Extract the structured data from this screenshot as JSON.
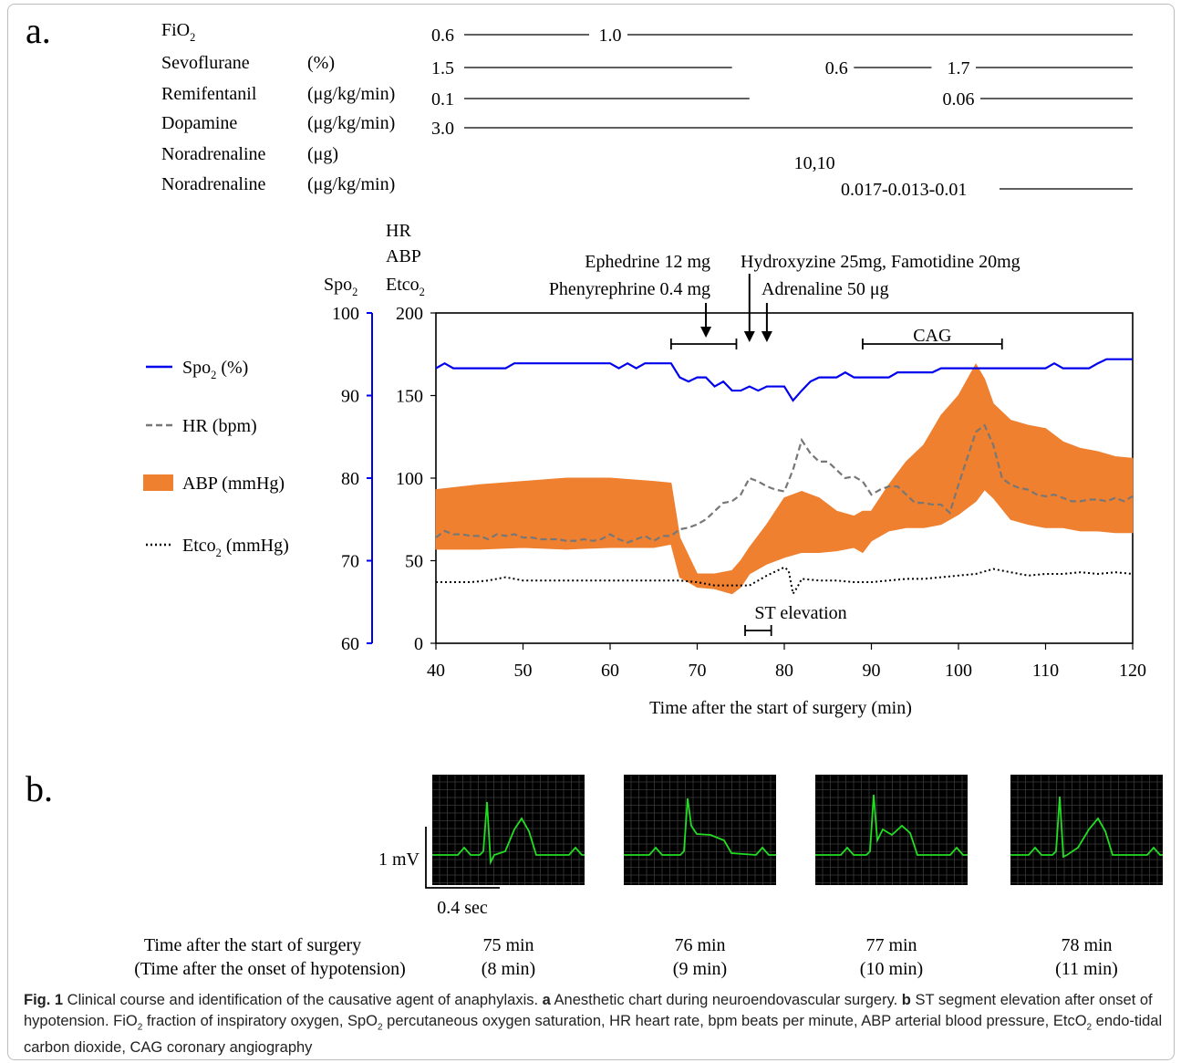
{
  "panel_a_label": "a.",
  "panel_b_label": "b.",
  "drugs": [
    {
      "name": "FiO",
      "sub": "2",
      "unit": "",
      "segments": [
        {
          "label": "0.6",
          "x0": 40,
          "x1": 60
        },
        {
          "label": "1.0",
          "x0": 60,
          "x1": 120
        }
      ]
    },
    {
      "name": "Sevoflurane",
      "sub": "",
      "unit": "(%)",
      "segments": [
        {
          "label": "1.5",
          "x0": 40,
          "x1": 74
        },
        {
          "label": "0.6",
          "x0": 86,
          "x1": 100
        },
        {
          "label": "1.7",
          "x0": 100,
          "x1": 120
        }
      ]
    },
    {
      "name": "Remifentanil",
      "sub": "",
      "unit": "(μg/kg/min)",
      "segments": [
        {
          "label": "0.1",
          "x0": 40,
          "x1": 76
        },
        {
          "label": "0.06",
          "x0": 100,
          "x1": 120
        }
      ]
    },
    {
      "name": "Dopamine",
      "sub": "",
      "unit": "(μg/kg/min)",
      "segments": [
        {
          "label": "3.0",
          "x0": 40,
          "x1": 120
        }
      ]
    },
    {
      "name": "Noradrenaline",
      "sub": "",
      "unit": "(μg)",
      "segments": [
        {
          "label": "10,10",
          "x0": 82,
          "x1": 82
        }
      ]
    },
    {
      "name": "Noradrenaline",
      "sub": "",
      "unit": "(μg/kg/min)",
      "segments": [
        {
          "label": "0.017",
          "x0": 83,
          "x1": 84
        },
        {
          "label": "0.013",
          "x0": 84,
          "x1": 86
        },
        {
          "label": "0.01",
          "x0": 86,
          "x1": 120
        }
      ]
    }
  ],
  "interventions": [
    {
      "text": "Ephedrine 12 mg",
      "x": 71
    },
    {
      "text": "Phenyrephrine 0.4 mg",
      "x": 71
    },
    {
      "text": "Hydroxyzine  25mg, Famotidine 20mg",
      "x": 76
    },
    {
      "text": "Adrenaline 50 μg",
      "x": 78
    }
  ],
  "chart_data": {
    "type": "line",
    "xlabel": "Time after the start of surgery (min)",
    "xlim": [
      40,
      120
    ],
    "xticks": [
      40,
      50,
      60,
      70,
      80,
      90,
      100,
      110,
      120
    ],
    "y_left": {
      "label": "Spo",
      "label_sub": "2",
      "range": [
        60,
        100
      ],
      "ticks": [
        60,
        70,
        80,
        90,
        100
      ],
      "color": "#0000ee"
    },
    "y_right": {
      "label_lines": [
        "HR",
        "ABP",
        "Etco"
      ],
      "label_sub": "2",
      "range": [
        0,
        200
      ],
      "ticks": [
        0,
        50,
        100,
        150,
        200
      ]
    },
    "legend": [
      {
        "name": "Spo",
        "sub": "2",
        "unit": " (%)",
        "style": "solid",
        "color": "#0000ee"
      },
      {
        "name": "HR (bpm)",
        "sub": "",
        "unit": "",
        "style": "dashed",
        "color": "#777777"
      },
      {
        "name": "ABP (mmHg)",
        "sub": "",
        "unit": "",
        "style": "band",
        "color": "#ee8030"
      },
      {
        "name": "Etco",
        "sub": "2",
        "unit": " (mmHg)",
        "style": "dotted",
        "color": "#000000"
      }
    ],
    "annotations": [
      {
        "text": "CAG",
        "x0": 89,
        "x1": 105
      },
      {
        "text": "",
        "x0": 67,
        "x1": 74.5
      },
      {
        "text": "ST elevation",
        "x0": 75.5,
        "x1": 78.5
      }
    ],
    "series_spo2": {
      "x": [
        40,
        41,
        42,
        43,
        44,
        45,
        46,
        47,
        48,
        49,
        50,
        51,
        52,
        53,
        54,
        55,
        56,
        57,
        58,
        59,
        60,
        61,
        62,
        63,
        64,
        65,
        66,
        67,
        68,
        69,
        70,
        71,
        72,
        73,
        74,
        75,
        76,
        77,
        78,
        79,
        80,
        81,
        82,
        83,
        84,
        85,
        86,
        87,
        88,
        89,
        90,
        91,
        92,
        93,
        94,
        95,
        96,
        97,
        98,
        99,
        100,
        101,
        102,
        103,
        104,
        105,
        106,
        107,
        108,
        109,
        110,
        111,
        112,
        113,
        114,
        115,
        116,
        117,
        118,
        119,
        120
      ],
      "y": [
        93.3,
        93.9,
        93.3,
        93.3,
        93.3,
        93.3,
        93.3,
        93.3,
        93.3,
        93.9,
        93.9,
        93.9,
        93.9,
        93.9,
        93.9,
        93.9,
        93.9,
        93.9,
        93.9,
        93.9,
        93.9,
        93.3,
        93.9,
        93.3,
        93.9,
        93.9,
        93.9,
        93.9,
        92.2,
        91.7,
        92.2,
        92.2,
        91.1,
        91.7,
        90.6,
        90.6,
        91.1,
        90.6,
        91.1,
        91.1,
        91.1,
        89.4,
        90.6,
        91.7,
        92.2,
        92.2,
        92.2,
        92.8,
        92.2,
        92.2,
        92.2,
        92.2,
        92.2,
        92.8,
        92.8,
        92.8,
        92.8,
        92.8,
        93.3,
        93.3,
        93.3,
        93.3,
        93.3,
        93.3,
        93.3,
        93.3,
        93.3,
        93.3,
        93.3,
        93.3,
        93.3,
        93.9,
        93.3,
        93.3,
        93.3,
        93.3,
        93.9,
        94.4,
        94.4,
        94.4,
        94.4
      ]
    },
    "series_hr": {
      "x": [
        40,
        41,
        42,
        43,
        44,
        45,
        46,
        47,
        48,
        49,
        50,
        51,
        52,
        53,
        54,
        55,
        56,
        57,
        58,
        59,
        60,
        61,
        62,
        63,
        64,
        65,
        66,
        67,
        68,
        69,
        70,
        71,
        72,
        73,
        74,
        75,
        76,
        77,
        78,
        79,
        80,
        81,
        82,
        83,
        84,
        85,
        86,
        87,
        88,
        89,
        90,
        91,
        92,
        93,
        94,
        95,
        96,
        97,
        98,
        99,
        100,
        101,
        102,
        103,
        104,
        105,
        106,
        107,
        108,
        109,
        110,
        111,
        112,
        113,
        114,
        115,
        116,
        117,
        118,
        119,
        120
      ],
      "y": [
        64,
        68,
        66,
        66,
        65,
        65,
        63,
        66,
        65,
        66,
        64,
        64,
        63,
        63,
        63,
        62,
        62,
        63,
        62,
        63,
        66,
        63,
        61,
        63,
        65,
        62,
        65,
        65,
        69,
        70,
        72,
        75,
        80,
        85,
        86,
        90,
        100,
        98,
        95,
        93,
        92,
        105,
        123,
        115,
        110,
        110,
        105,
        100,
        101,
        98,
        90,
        93,
        95,
        95,
        90,
        85,
        85,
        84,
        84,
        79,
        96,
        112,
        128,
        132,
        120,
        100,
        96,
        94,
        93,
        90,
        89,
        90,
        88,
        86,
        86,
        87,
        87,
        86,
        88,
        86,
        89
      ]
    },
    "series_abp_high": {
      "x": [
        40,
        45,
        50,
        55,
        60,
        65,
        67,
        68,
        70,
        72,
        74,
        75,
        76,
        78,
        80,
        82,
        84,
        86,
        88,
        89,
        90,
        92,
        94,
        96,
        98,
        100,
        102,
        103,
        104,
        106,
        108,
        110,
        112,
        114,
        116,
        118,
        120
      ],
      "y": [
        93,
        96,
        98,
        100,
        100,
        98,
        97,
        64,
        42,
        42,
        44,
        50,
        58,
        72,
        88,
        92,
        88,
        80,
        77,
        80,
        80,
        96,
        110,
        120,
        138,
        150,
        169,
        160,
        145,
        135,
        132,
        130,
        122,
        118,
        116,
        113,
        112
      ]
    },
    "series_abp_low": {
      "x": [
        40,
        45,
        50,
        55,
        60,
        65,
        67,
        68,
        70,
        72,
        74,
        75,
        76,
        78,
        80,
        82,
        84,
        86,
        88,
        89,
        90,
        92,
        94,
        96,
        98,
        100,
        102,
        103,
        104,
        106,
        108,
        110,
        112,
        114,
        116,
        118,
        120
      ],
      "y": [
        57,
        57,
        58,
        57,
        58,
        58,
        60,
        40,
        34,
        33,
        30,
        34,
        42,
        48,
        52,
        55,
        55,
        56,
        58,
        55,
        62,
        68,
        70,
        70,
        72,
        78,
        86,
        93,
        88,
        75,
        72,
        70,
        70,
        68,
        68,
        67,
        67
      ]
    },
    "series_etco2": {
      "x": [
        40,
        42,
        44,
        46,
        48,
        50,
        52,
        54,
        56,
        58,
        60,
        62,
        64,
        66,
        68,
        70,
        72,
        74,
        76,
        78,
        80,
        80.5,
        81,
        81.5,
        82,
        84,
        86,
        88,
        90,
        92,
        94,
        96,
        98,
        100,
        102,
        104,
        106,
        108,
        110,
        112,
        114,
        116,
        118,
        120
      ],
      "y": [
        37,
        37,
        37,
        38,
        40,
        38,
        38,
        38,
        38,
        38,
        38,
        38,
        38,
        38,
        38,
        37,
        35,
        35,
        35,
        41,
        46,
        44,
        30,
        34,
        39,
        38,
        38,
        37,
        37,
        38,
        39,
        39,
        40,
        41,
        42,
        45,
        43,
        41,
        42,
        42,
        43,
        42,
        43,
        42
      ]
    }
  },
  "panel_b": {
    "scale_v": "1 mV",
    "scale_h": "0.4 sec",
    "row1_label": "Time after the start of surgery",
    "row2_label": "(Time after the onset of hypotension)",
    "ecgs": [
      {
        "time": "75 min",
        "onset": "(8 min)"
      },
      {
        "time": "76 min",
        "onset": "(9 min)"
      },
      {
        "time": "77 min",
        "onset": "(10 min)"
      },
      {
        "time": "78 min",
        "onset": "(11 min)"
      }
    ]
  },
  "caption": {
    "fig": "Fig. 1",
    "text1": "  Clinical course and identification of the causative agent of anaphylaxis. ",
    "a": "a",
    "text2": " Anesthetic chart during neuroendovascular surgery. ",
    "b": "b",
    "text3": " ST segment elevation after onset of hypotension. FiO",
    "text4": " fraction of inspiratory oxygen, SpO",
    "text5": " percutaneous oxygen saturation, HR heart rate, bpm beats per minute, ABP arterial blood pressure, EtcO",
    "text6": " endo-tidal carbon dioxide, CAG coronary angiography",
    "sub": "2"
  }
}
